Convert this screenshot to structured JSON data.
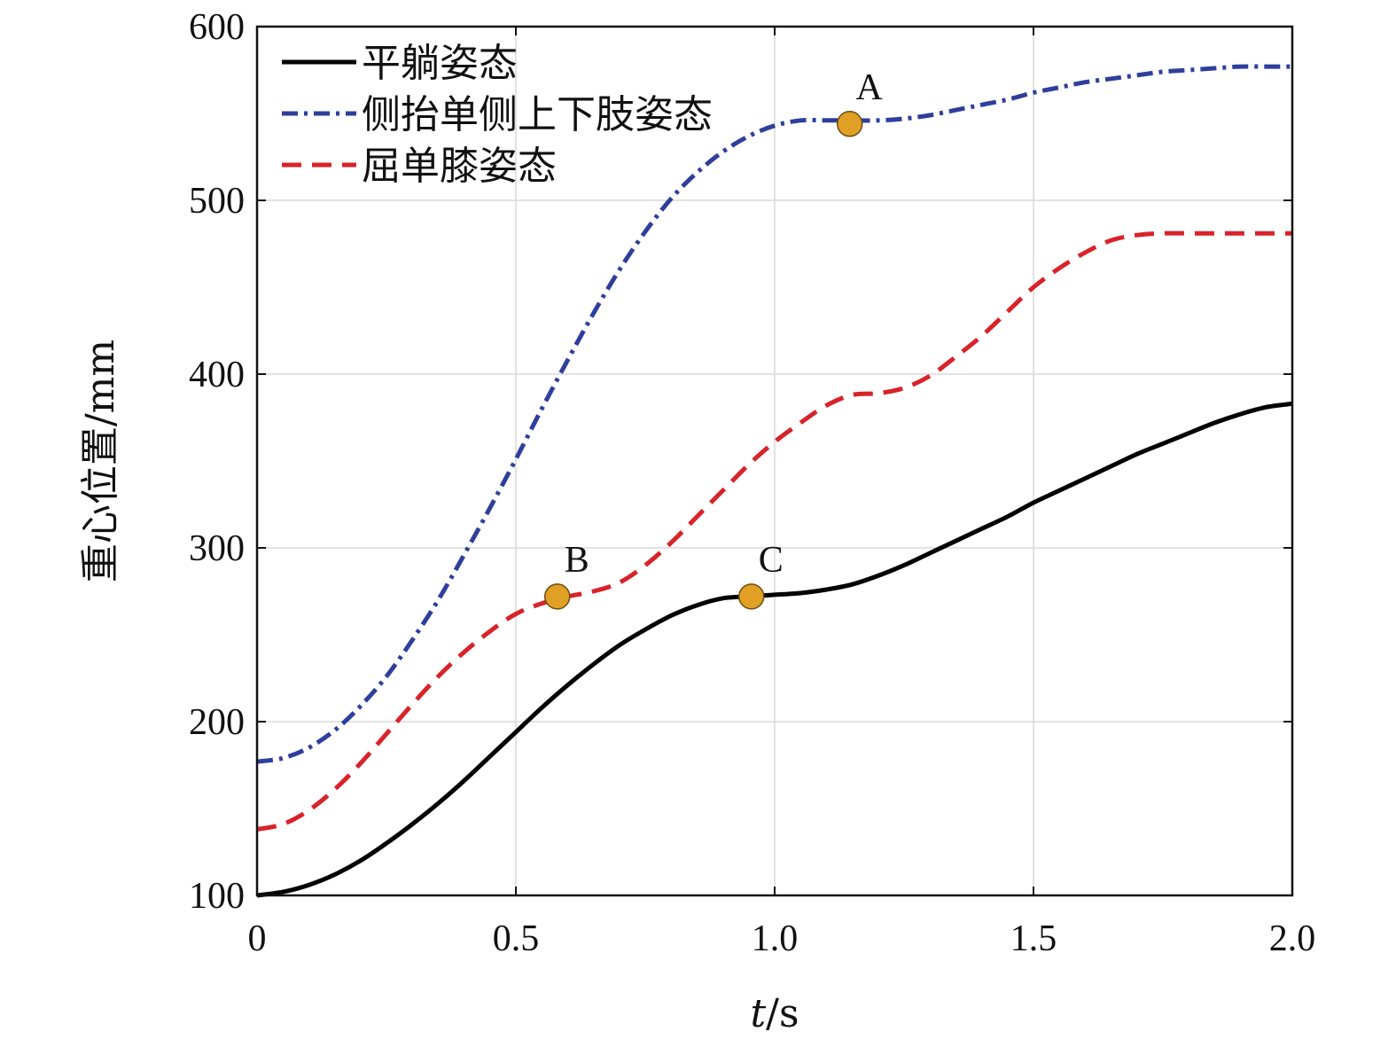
{
  "chart_data": {
    "type": "line",
    "xlabel_italic": "t",
    "xlabel_unit": "/s",
    "ylabel": "重心位置/mm",
    "xlim": [
      0,
      2.0
    ],
    "ylim": [
      100,
      600
    ],
    "xticks": [
      0,
      0.5,
      1.0,
      1.5,
      2.0
    ],
    "xtick_labels": [
      "0",
      "0.5",
      "1.0",
      "1.5",
      "2.0"
    ],
    "yticks": [
      100,
      200,
      300,
      400,
      500,
      600
    ],
    "ytick_labels": [
      "100",
      "200",
      "300",
      "400",
      "500",
      "600"
    ],
    "grid": true,
    "legend_position": "top-left",
    "series": [
      {
        "name": "平躺姿态",
        "color": "#000000",
        "dash": "solid",
        "x": [
          0,
          0.05,
          0.1,
          0.15,
          0.2,
          0.25,
          0.3,
          0.35,
          0.4,
          0.45,
          0.5,
          0.55,
          0.6,
          0.65,
          0.7,
          0.75,
          0.8,
          0.85,
          0.9,
          0.95,
          1.0,
          1.05,
          1.1,
          1.15,
          1.2,
          1.25,
          1.3,
          1.35,
          1.4,
          1.45,
          1.5,
          1.55,
          1.6,
          1.65,
          1.7,
          1.75,
          1.8,
          1.85,
          1.9,
          1.95,
          2.0
        ],
        "y": [
          100,
          102,
          106,
          112,
          120,
          130,
          141,
          153,
          166,
          180,
          194,
          208,
          221,
          233,
          244,
          253,
          261,
          267,
          271,
          272,
          273,
          274,
          276,
          279,
          284,
          290,
          297,
          304,
          311,
          318,
          326,
          333,
          340,
          347,
          354,
          360,
          366,
          372,
          377,
          381,
          383
        ]
      },
      {
        "name": "侧抬单侧上下肢姿态",
        "color": "#2e3f9b",
        "dash": "dashdot",
        "x": [
          0,
          0.05,
          0.1,
          0.15,
          0.2,
          0.25,
          0.3,
          0.35,
          0.4,
          0.45,
          0.5,
          0.55,
          0.6,
          0.65,
          0.7,
          0.75,
          0.8,
          0.85,
          0.9,
          0.95,
          1.0,
          1.05,
          1.1,
          1.15,
          1.2,
          1.25,
          1.3,
          1.35,
          1.4,
          1.45,
          1.5,
          1.55,
          1.6,
          1.65,
          1.7,
          1.75,
          1.8,
          1.85,
          1.9,
          1.95,
          2.0
        ],
        "y": [
          177,
          179,
          185,
          195,
          209,
          226,
          247,
          270,
          296,
          323,
          351,
          380,
          408,
          435,
          460,
          482,
          501,
          516,
          528,
          537,
          543,
          546,
          546,
          546,
          546,
          547,
          549,
          552,
          555,
          558,
          562,
          565,
          568,
          570,
          572,
          574,
          575,
          576,
          577,
          577,
          577
        ]
      },
      {
        "name": "屈单膝姿态",
        "color": "#d8232a",
        "dash": "dashed",
        "x": [
          0,
          0.05,
          0.1,
          0.15,
          0.2,
          0.25,
          0.3,
          0.35,
          0.4,
          0.45,
          0.5,
          0.55,
          0.6,
          0.65,
          0.7,
          0.75,
          0.8,
          0.85,
          0.9,
          0.95,
          1.0,
          1.05,
          1.1,
          1.15,
          1.2,
          1.25,
          1.3,
          1.35,
          1.4,
          1.45,
          1.5,
          1.55,
          1.6,
          1.65,
          1.7,
          1.75,
          1.8,
          1.85,
          1.9,
          1.95,
          2.0
        ],
        "y": [
          138,
          141,
          149,
          161,
          176,
          193,
          210,
          226,
          240,
          252,
          262,
          268,
          272,
          275,
          280,
          290,
          303,
          318,
          333,
          348,
          361,
          372,
          382,
          388,
          389,
          392,
          399,
          410,
          422,
          436,
          450,
          461,
          470,
          477,
          480,
          481,
          481,
          481,
          481,
          481,
          481
        ]
      }
    ],
    "annotations": [
      {
        "label": "A",
        "x": 1.145,
        "y": 544,
        "color": "#e0a025"
      },
      {
        "label": "B",
        "x": 0.58,
        "y": 272,
        "color": "#e0a025"
      },
      {
        "label": "C",
        "x": 0.955,
        "y": 272,
        "color": "#e0a025"
      }
    ]
  }
}
